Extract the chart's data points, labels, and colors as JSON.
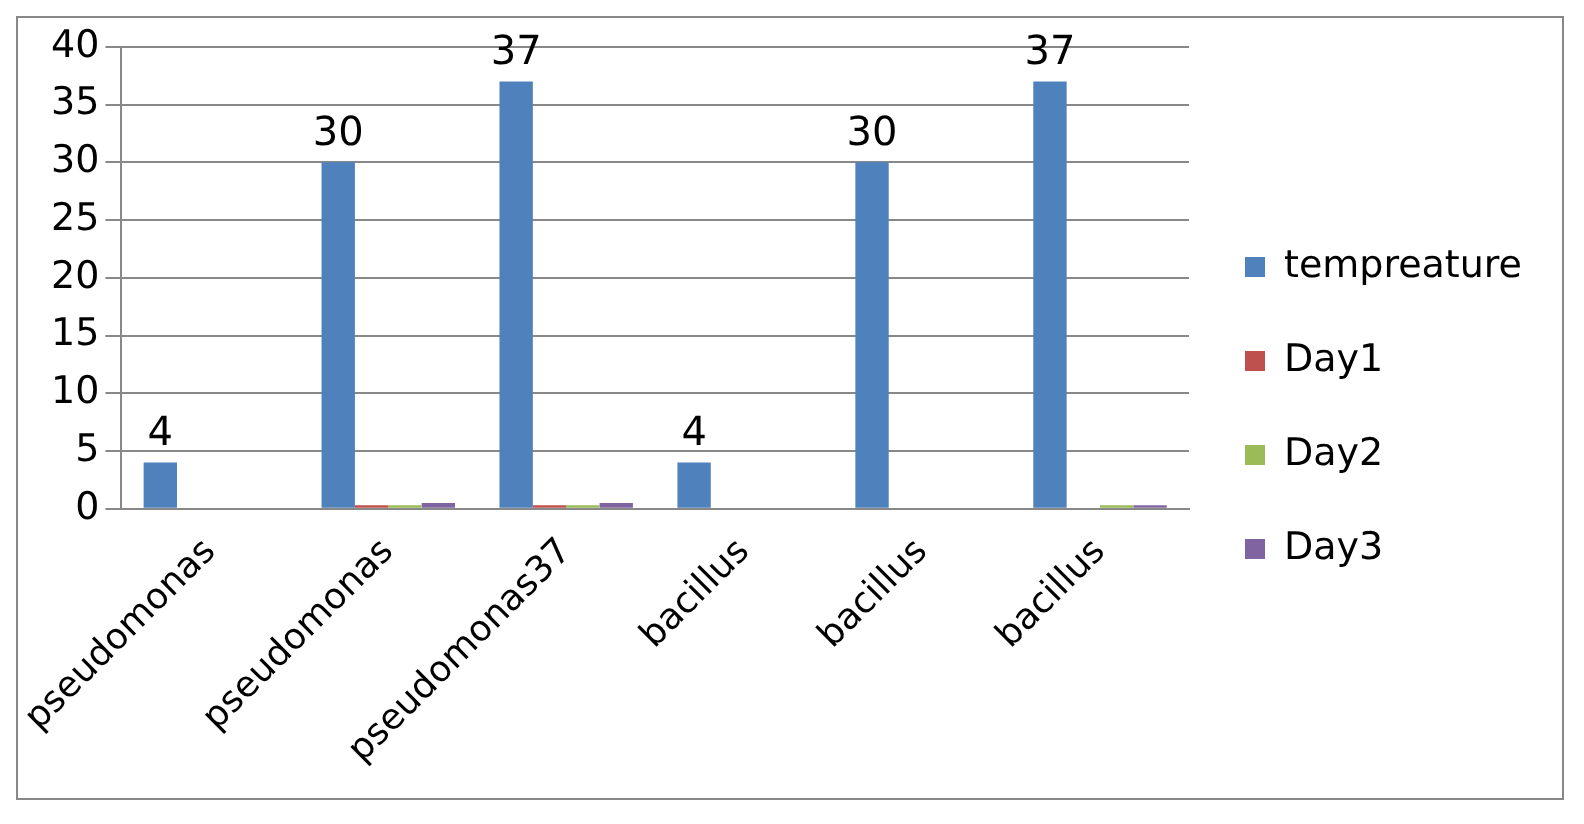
{
  "chart_data": {
    "type": "bar",
    "categories": [
      "pseudomonas",
      "pseudomonas",
      "pseudomonas37",
      "bacillus",
      "bacillus",
      "bacillus"
    ],
    "series": [
      {
        "name": "tempreature",
        "color": "#4f81bd",
        "values": [
          4,
          30,
          37,
          4,
          30,
          37
        ],
        "value_labels": [
          "4",
          "30",
          "37",
          "4",
          "30",
          "37"
        ]
      },
      {
        "name": "Day1",
        "color": "#c0504d",
        "values": [
          0,
          0.3,
          0.3,
          0,
          0,
          0
        ]
      },
      {
        "name": "Day2",
        "color": "#9bbb59",
        "values": [
          0,
          0.3,
          0.3,
          0,
          0,
          0.3
        ]
      },
      {
        "name": "Day3",
        "color": "#8064a2",
        "values": [
          0,
          0.5,
          0.5,
          0,
          0,
          0.3
        ]
      }
    ],
    "ylim": [
      0,
      40
    ],
    "yticks": [
      0,
      5,
      10,
      15,
      20,
      25,
      30,
      35,
      40
    ],
    "grid": "y",
    "legend": "right"
  }
}
